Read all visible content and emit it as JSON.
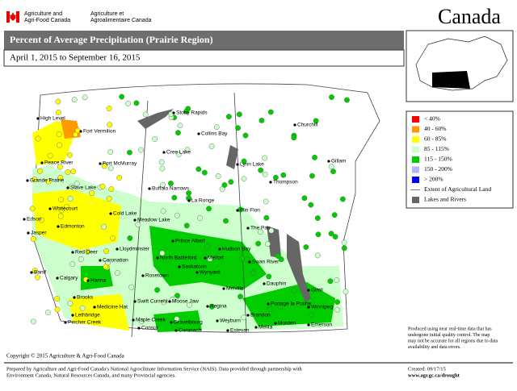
{
  "header": {
    "agency_en": [
      "Agriculture and",
      "Agri-Food Canada"
    ],
    "agency_fr": [
      "Agriculture et",
      "Agroalimentaire Canada"
    ],
    "wordmark": "Canada",
    "title": "Percent of Average Precipitation (Prairie Region)",
    "period": "April 1, 2015 to September 16, 2015"
  },
  "legend": [
    {
      "label": "< 40%",
      "color": "#ff0000"
    },
    {
      "label": "40 - 60%",
      "color": "#ff9900"
    },
    {
      "label": "60 - 85%",
      "color": "#ffff00"
    },
    {
      "label": "85 - 115%",
      "color": "#ccffcc"
    },
    {
      "label": "115 - 150%",
      "color": "#00cc00"
    },
    {
      "label": "150 - 200%",
      "color": "#b3b3ff"
    },
    {
      "label": "> 200%",
      "color": "#0000ff"
    },
    {
      "label": "Extent of Agricultural Land",
      "color": "#808080"
    },
    {
      "label": "Lakes and Rivers",
      "color": "#666666"
    }
  ],
  "cities": [
    "High Level",
    "Fort Vermilion",
    "Stony Rapids",
    "Churchill",
    "Collins Bay",
    "Fort McMurray",
    "Cree Lake",
    "Lynn Lake",
    "Gillam",
    "Peace River",
    "Grande Prairie",
    "Slave Lake",
    "Buffalo Narrows",
    "Thompson",
    "La Ronge",
    "Whitecourt",
    "Cold Lake",
    "Flin Flon",
    "Edson",
    "Edmonton",
    "Meadow Lake",
    "Jasper",
    "The Pas",
    "Lloydminster",
    "Prince Albert",
    "Hudson Bay",
    "Red Deer",
    "North Battleford",
    "Melfort",
    "Coronation",
    "Swan River",
    "Saskatoon",
    "Banff",
    "Wynyard",
    "Calgary",
    "Hanna",
    "Rosetown",
    "Dauphin",
    "Gimli",
    "Melville",
    "Brooks",
    "Swift Current",
    "Moose Jaw",
    "Portage la Prairie",
    "Medicine Hat",
    "Regina",
    "Winnipeg",
    "Lethbridge",
    "Brandon",
    "Maple Creek",
    "Gravelbourg",
    "Weyburn",
    "Morden",
    "Pincher Creek",
    "Estevan",
    "Melita",
    "Emerson",
    "Coronach",
    "Consul"
  ],
  "note": [
    "Produced using near real-time data that has",
    "undergone initial quality control. The map",
    "may not be accurate for all regions due to data",
    "availability and data errors."
  ],
  "footer": {
    "copyright": "Copyright © 2015 Agriculture & Agri-Food Canada",
    "prepared": [
      "Prepared by Agriculture and Agri-Food Canada's National Agroclimate Information Service (NAIS).  Data provided through partnership with",
      "Environment Canada, Natural Resources Canada, and many Provincial agencies."
    ],
    "created": "Created: 09/17/15",
    "url": "www.agr.gc.ca/drought"
  }
}
